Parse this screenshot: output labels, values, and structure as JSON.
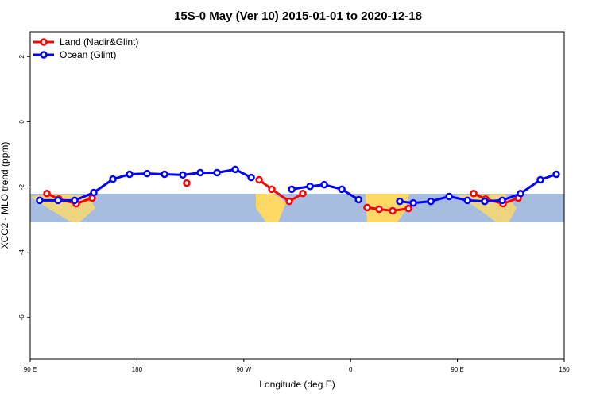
{
  "chart_data": {
    "type": "line",
    "title": "15S-0 May (Ver 10)   2015-01-01 to 2020-12-18",
    "x_label": "Longitude (deg E)",
    "y_label": "XCO2 - MLO trend (ppm)",
    "xlim": [
      90,
      540
    ],
    "ylim": [
      -7.27,
      2.76
    ],
    "xticks": [
      {
        "value": 90,
        "label": "90 E"
      },
      180,
      {
        "value": 270,
        "label": "90 W"
      },
      {
        "value": 360,
        "label": "0"
      },
      {
        "value": 450,
        "label": "90 E"
      },
      {
        "value": 540,
        "label": "180"
      }
    ],
    "yticks": [
      2,
      0,
      -2,
      -4,
      -6
    ],
    "legend": "top-left",
    "series": [
      {
        "name": "Land (Nadir&Glint)",
        "color": "#ff0000",
        "x": [
          104.1,
          114.1,
          128.8,
          142.2,
          null,
          221.9,
          null,
          282.9,
          293.6,
          308.3,
          319.7,
          null,
          373.9,
          384.0,
          395.4,
          408.8,
          null,
          463.7,
          473.7,
          488.4,
          501.2
        ],
        "values": [
          -2.2,
          -2.37,
          -2.51,
          -2.34,
          null,
          -1.88,
          null,
          -1.78,
          -2.07,
          -2.44,
          -2.2,
          null,
          -2.63,
          -2.68,
          -2.73,
          -2.66,
          null,
          -2.2,
          -2.37,
          -2.51,
          -2.34
        ]
      },
      {
        "name": "Ocean (Glint)",
        "color": "#0000ff",
        "x": [
          98.0,
          113.4,
          127.5,
          143.6,
          159.7,
          173.7,
          188.5,
          203.2,
          218.6,
          233.3,
          247.4,
          262.8,
          276.2,
          null,
          310.4,
          325.8,
          337.8,
          352.6,
          366.7,
          null,
          401.4,
          412.8,
          427.6,
          443.0,
          458.4,
          473.0,
          487.8,
          503.2,
          519.9,
          533.3
        ],
        "values": [
          -2.41,
          -2.41,
          -2.41,
          -2.17,
          -1.76,
          -1.61,
          -1.59,
          -1.61,
          -1.63,
          -1.56,
          -1.56,
          -1.46,
          -1.71,
          null,
          -2.07,
          -1.98,
          -1.93,
          -2.07,
          -2.39,
          null,
          -2.44,
          -2.49,
          -2.44,
          -2.29,
          -2.41,
          -2.44,
          -2.41,
          -2.2,
          -1.78,
          -1.61
        ]
      }
    ]
  }
}
